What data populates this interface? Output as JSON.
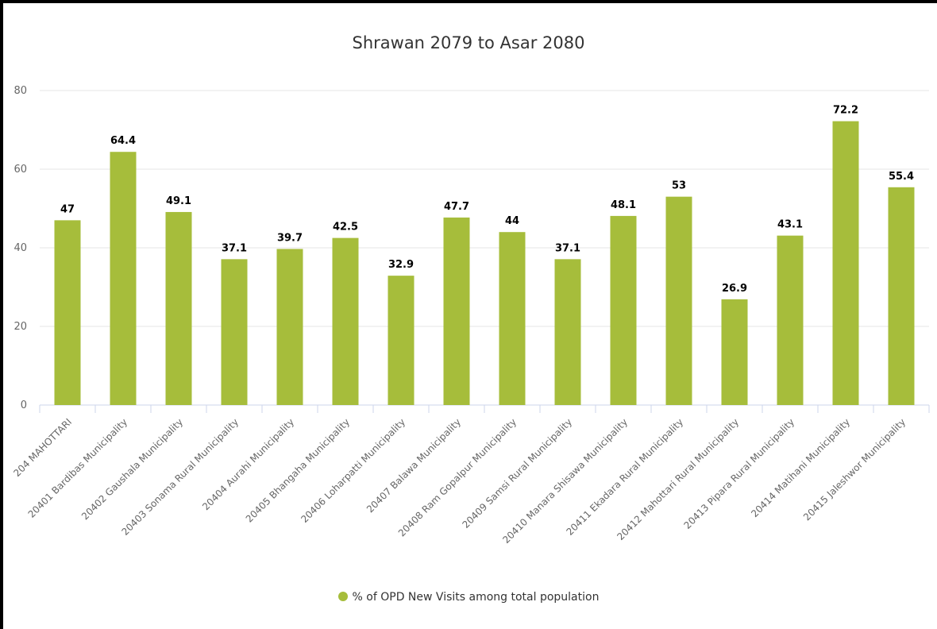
{
  "chart_data": {
    "type": "bar",
    "title": "Shrawan 2079 to Asar 2080",
    "categories": [
      "204 MAHOTTARI",
      "20401 Bardibas Municipality",
      "20402 Gaushala Municipality",
      "20403 Sonama Rural Municipality",
      "20404 Aurahi Municipality",
      "20405 Bhangaha Municipality",
      "20406 Loharpatti Municipality",
      "20407 Balawa Municipality",
      "20408 Ram Gopalpur Municipality",
      "20409 Samsi Rural Municipality",
      "20410 Manara Shisawa Municipality",
      "20411 Ekadara Rural Municipality",
      "20412 Mahottari Rural Municipality",
      "20413 Pipara Rural Municipality",
      "20414 Matihani Municipality",
      "20415 Jaleshwor Municipality"
    ],
    "series": [
      {
        "name": "% of OPD New Visits among total population",
        "values": [
          47,
          64.4,
          49.1,
          37.1,
          39.7,
          42.5,
          32.9,
          47.7,
          44,
          37.1,
          48.1,
          53,
          26.9,
          43.1,
          72.2,
          55.4
        ]
      }
    ],
    "data_labels": [
      "47",
      "64.4",
      "49.1",
      "37.1",
      "39.7",
      "42.5",
      "32.9",
      "47.7",
      "44",
      "37.1",
      "48.1",
      "53",
      "26.9",
      "43.1",
      "72.2",
      "55.4"
    ],
    "yticks": [
      "0",
      "20",
      "40",
      "60",
      "80"
    ],
    "ylim": [
      0,
      80
    ],
    "grid": true,
    "legend_position": "bottom-center",
    "colors": {
      "bar": "#a6bd3b",
      "grid": "#e6e6e6",
      "axis": "#ccd6eb"
    }
  }
}
